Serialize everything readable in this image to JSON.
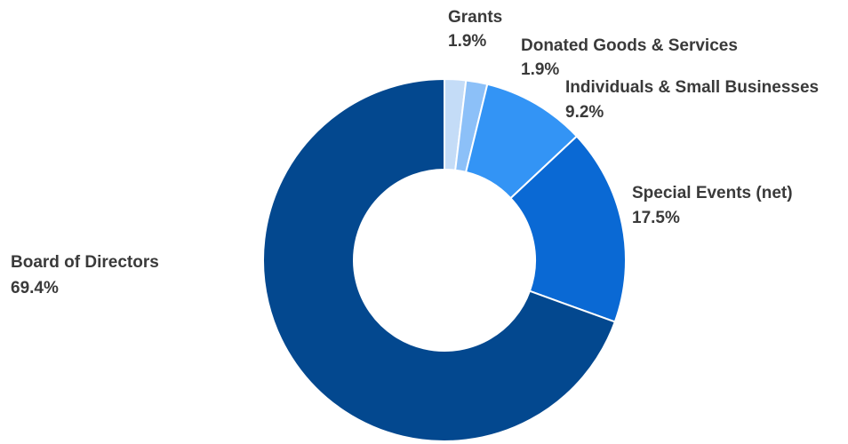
{
  "chart_data": {
    "type": "pie",
    "title": "",
    "slices": [
      {
        "label": "Grants",
        "percent_label": "1.9%",
        "value": 1.9,
        "color": "#c4dcf7"
      },
      {
        "label": "Donated Goods & Services",
        "percent_label": "1.9%",
        "value": 1.9,
        "color": "#8cc0f8"
      },
      {
        "label": "Individuals & Small Businesses",
        "percent_label": "9.2%",
        "value": 9.2,
        "color": "#3394f5"
      },
      {
        "label": "Special Events (net)",
        "percent_label": "17.5%",
        "value": 17.5,
        "color": "#0a69d4"
      },
      {
        "label": "Board of Directors",
        "percent_label": "69.4%",
        "value": 69.4,
        "color": "#03488f"
      }
    ],
    "legend": "none",
    "labels_placement": "outside"
  }
}
